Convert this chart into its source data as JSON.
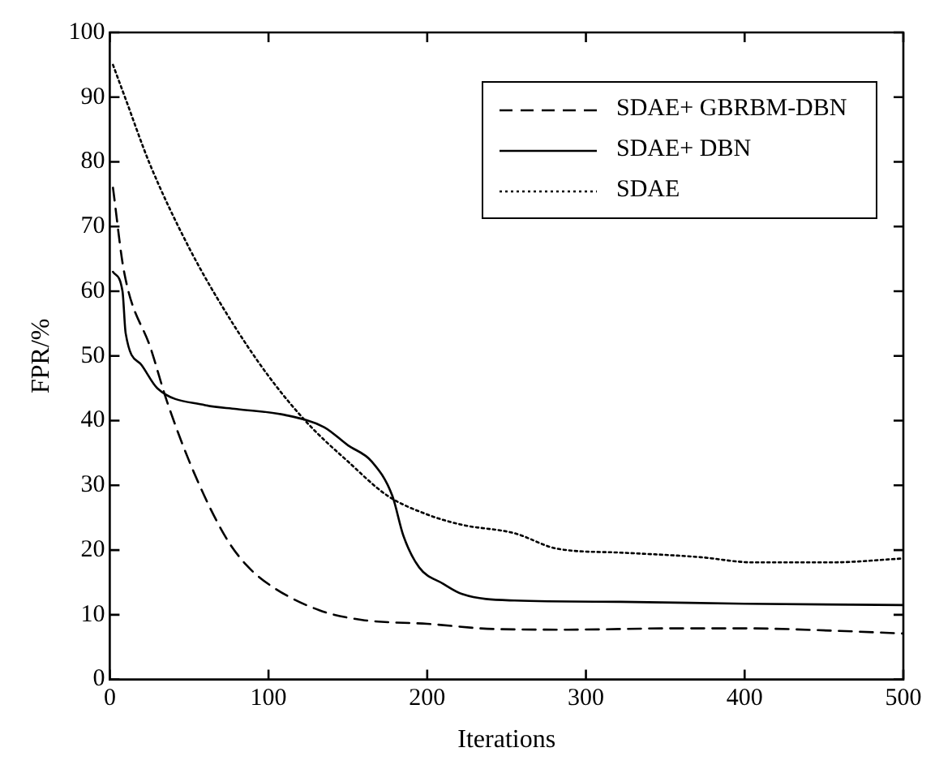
{
  "chart_data": {
    "type": "line",
    "xlabel": "Iterations",
    "ylabel": "FPR/%",
    "xlim": [
      0,
      500
    ],
    "xticks": [
      0,
      100,
      200,
      300,
      400,
      500
    ],
    "ylim": [
      0,
      100
    ],
    "yticks": [
      0,
      10,
      20,
      30,
      40,
      50,
      60,
      70,
      80,
      90,
      100
    ],
    "grid": false,
    "legend": "top right",
    "marker": "none",
    "series": [
      {
        "name": "SDAE+ GBRBM-DBN",
        "color": "#000000",
        "line_style": "dashed",
        "x": [
          2,
          9,
          26,
          36,
          53,
          73,
          86,
          102,
          132,
          159,
          200,
          242,
          289,
          355,
          400,
          460,
          500
        ],
        "values": [
          76,
          63,
          51,
          43,
          32,
          22,
          17.7,
          14.4,
          10.7,
          9.2,
          8.6,
          7.8,
          7.7,
          7.9,
          7.9,
          7.5,
          7.1
        ]
      },
      {
        "name": "SDAE+ DBN",
        "color": "#000000",
        "line_style": "solid",
        "x": [
          2,
          8,
          10,
          20,
          30,
          60,
          80,
          110,
          135,
          150,
          165,
          178,
          185,
          195,
          210,
          222,
          255,
          322,
          400,
          500
        ],
        "values": [
          63,
          60,
          53.5,
          48.6,
          45,
          42.4,
          41.8,
          40.9,
          39,
          36.2,
          33.7,
          28.4,
          22.2,
          17.3,
          14.8,
          13.2,
          12.2,
          12,
          11.7,
          11.5
        ]
      },
      {
        "name": "SDAE",
        "color": "#000000",
        "line_style": "dotted",
        "x": [
          2,
          10,
          25,
          50,
          75,
          100,
          125,
          150,
          175,
          200,
          222,
          255,
          282,
          322,
          372,
          405,
          455,
          500
        ],
        "values": [
          95,
          89.7,
          79.8,
          66.7,
          56,
          46.9,
          39.5,
          33.7,
          28.4,
          25.5,
          23.9,
          22.6,
          20.2,
          19.6,
          18.9,
          18.1,
          18.1,
          18.7
        ]
      }
    ]
  }
}
